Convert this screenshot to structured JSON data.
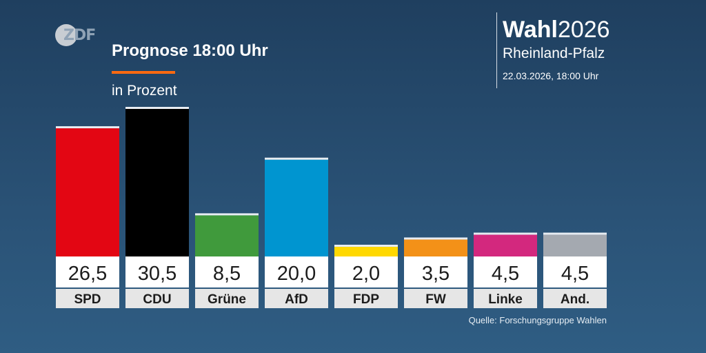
{
  "logo": {
    "text": "ZDF"
  },
  "header": {
    "title": "Prognose 18:00 Uhr",
    "subtitle": "in Prozent"
  },
  "brand": {
    "wahl": "Wahl",
    "year": "2026",
    "region": "Rheinland-Pfalz",
    "date": "22.03.2026, 18:00 Uhr"
  },
  "source": "Quelle: Forschungsgruppe Wahlen",
  "chart_data": {
    "type": "bar",
    "categories": [
      "SPD",
      "CDU",
      "Grüne",
      "AfD",
      "FDP",
      "FW",
      "Linke",
      "And."
    ],
    "values": [
      26.5,
      30.5,
      8.5,
      20.0,
      2.0,
      3.5,
      4.5,
      4.5
    ],
    "value_labels": [
      "26,5",
      "30,5",
      "8,5",
      "20,0",
      "2,0",
      "3,5",
      "4,5",
      "4,5"
    ],
    "colors": [
      "#e30613",
      "#000000",
      "#409a3c",
      "#0095d0",
      "#ffd800",
      "#f39118",
      "#d3287e",
      "#a4a9b0"
    ],
    "title": "Prognose 18:00 Uhr",
    "ylabel": "in Prozent",
    "ylim": [
      0,
      30.5
    ],
    "grid": false,
    "legend": "none"
  }
}
